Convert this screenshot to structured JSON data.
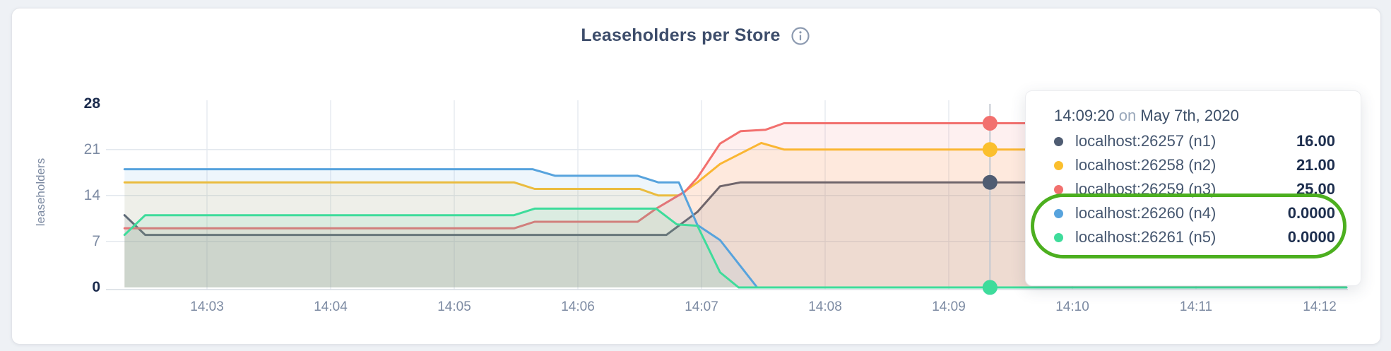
{
  "page": {
    "background": "#eef1f5",
    "card_background": "#ffffff"
  },
  "chart": {
    "title": "Leaseholders per Store",
    "info_icon": "info",
    "ylabel": "leaseholders"
  },
  "chart_data": {
    "type": "area",
    "title": "Leaseholders per Store",
    "xlabel": "",
    "ylabel": "leaseholders",
    "ylim": [
      0,
      28
    ],
    "y_ticks": [
      0,
      7,
      14,
      21,
      28
    ],
    "grid": true,
    "x_note": "time values are seconds after 14:02:00",
    "x_ticks": [
      {
        "label": "14:03",
        "t": 60
      },
      {
        "label": "14:04",
        "t": 120
      },
      {
        "label": "14:05",
        "t": 180
      },
      {
        "label": "14:06",
        "t": 240
      },
      {
        "label": "14:07",
        "t": 300
      },
      {
        "label": "14:08",
        "t": 360
      },
      {
        "label": "14:09",
        "t": 420
      },
      {
        "label": "14:10",
        "t": 480
      },
      {
        "label": "14:11",
        "t": 540
      },
      {
        "label": "14:12",
        "t": 600
      }
    ],
    "series": [
      {
        "name": "localhost:26257 (n1)",
        "color": "#4f5c72",
        "points": [
          [
            20,
            11
          ],
          [
            30,
            8
          ],
          [
            283,
            8
          ],
          [
            298,
            11.5
          ],
          [
            309,
            15.4
          ],
          [
            319,
            16
          ],
          [
            613,
            16
          ]
        ]
      },
      {
        "name": "localhost:26258 (n2)",
        "color": "#fbbf2d",
        "points": [
          [
            20,
            16
          ],
          [
            209,
            16
          ],
          [
            219,
            15
          ],
          [
            270,
            15
          ],
          [
            279,
            14
          ],
          [
            289,
            14
          ],
          [
            298,
            16
          ],
          [
            309,
            18.8
          ],
          [
            329,
            22
          ],
          [
            340,
            21
          ],
          [
            613,
            21
          ]
        ]
      },
      {
        "name": "localhost:26259 (n3)",
        "color": "#f2706e",
        "points": [
          [
            20,
            9
          ],
          [
            209,
            9
          ],
          [
            219,
            10
          ],
          [
            269,
            10
          ],
          [
            278,
            12
          ],
          [
            292,
            14.6
          ],
          [
            298,
            16.7
          ],
          [
            309,
            21.9
          ],
          [
            319,
            23.8
          ],
          [
            331,
            24
          ],
          [
            340,
            25
          ],
          [
            613,
            25
          ]
        ]
      },
      {
        "name": "localhost:26260 (n4)",
        "color": "#57a3dd",
        "points": [
          [
            20,
            18
          ],
          [
            218,
            18
          ],
          [
            229,
            17
          ],
          [
            269,
            17
          ],
          [
            279,
            16
          ],
          [
            289,
            16
          ],
          [
            298,
            9.5
          ],
          [
            309,
            7.2
          ],
          [
            327,
            0
          ],
          [
            613,
            0
          ]
        ]
      },
      {
        "name": "localhost:26261 (n5)",
        "color": "#3edc9b",
        "points": [
          [
            20,
            8
          ],
          [
            30,
            11
          ],
          [
            209,
            11
          ],
          [
            219,
            12
          ],
          [
            278,
            12
          ],
          [
            288,
            9.6
          ],
          [
            298,
            9.4
          ],
          [
            309,
            2.3
          ],
          [
            318,
            0
          ],
          [
            613,
            0
          ]
        ]
      }
    ],
    "hover": {
      "t": 440,
      "time": "14:09:20",
      "on_word": "on",
      "date": "May 7th, 2020",
      "values": [
        "16.00",
        "21.00",
        "25.00",
        "0.0000",
        "0.0000"
      ],
      "numeric_values": [
        16,
        21,
        25,
        0,
        0
      ],
      "highlighted": [
        false,
        false,
        false,
        true,
        true
      ],
      "highlight_color": "#4caf1f"
    },
    "legend_position": "tooltip"
  }
}
